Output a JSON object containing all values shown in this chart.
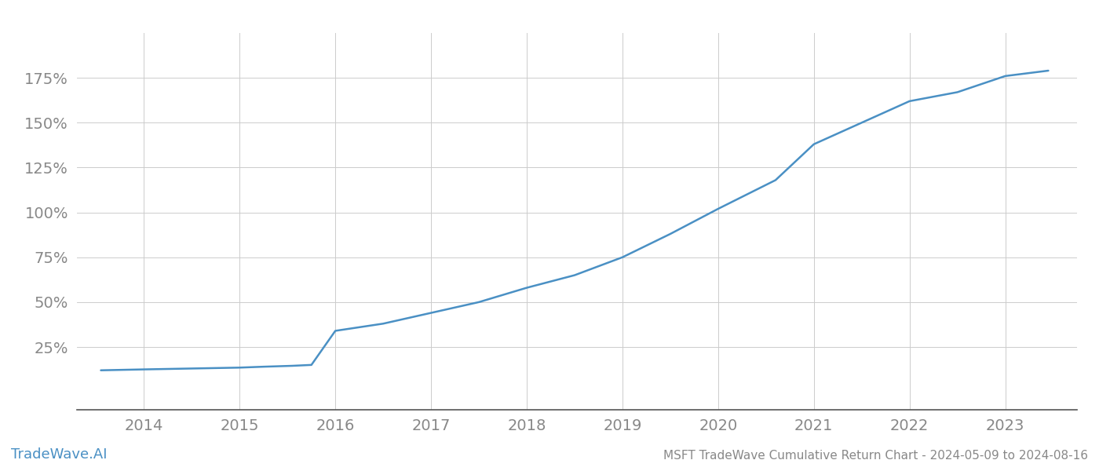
{
  "title": "MSFT TradeWave Cumulative Return Chart - 2024-05-09 to 2024-08-16",
  "watermark": "TradeWave.AI",
  "line_color": "#4a90c4",
  "background_color": "#ffffff",
  "grid_color": "#cccccc",
  "x_years": [
    2014,
    2015,
    2016,
    2017,
    2018,
    2019,
    2020,
    2021,
    2022,
    2023
  ],
  "x_values": [
    2013.55,
    2014.0,
    2014.5,
    2015.0,
    2015.25,
    2015.55,
    2015.75,
    2016.0,
    2016.5,
    2017.0,
    2017.5,
    2018.0,
    2018.5,
    2019.0,
    2019.5,
    2020.0,
    2020.3,
    2020.6,
    2021.0,
    2021.5,
    2022.0,
    2022.5,
    2023.0,
    2023.45
  ],
  "y_values": [
    12,
    12.5,
    13,
    13.5,
    14,
    14.5,
    15,
    34,
    38,
    44,
    50,
    58,
    65,
    75,
    88,
    102,
    110,
    118,
    138,
    150,
    162,
    167,
    176,
    179
  ],
  "yticks": [
    25,
    50,
    75,
    100,
    125,
    150,
    175
  ],
  "ylim": [
    -10,
    200
  ],
  "xlim": [
    2013.3,
    2023.75
  ],
  "title_fontsize": 11,
  "tick_fontsize": 14,
  "watermark_fontsize": 13,
  "title_color": "#666666",
  "tick_color": "#888888",
  "axis_color": "#555555"
}
